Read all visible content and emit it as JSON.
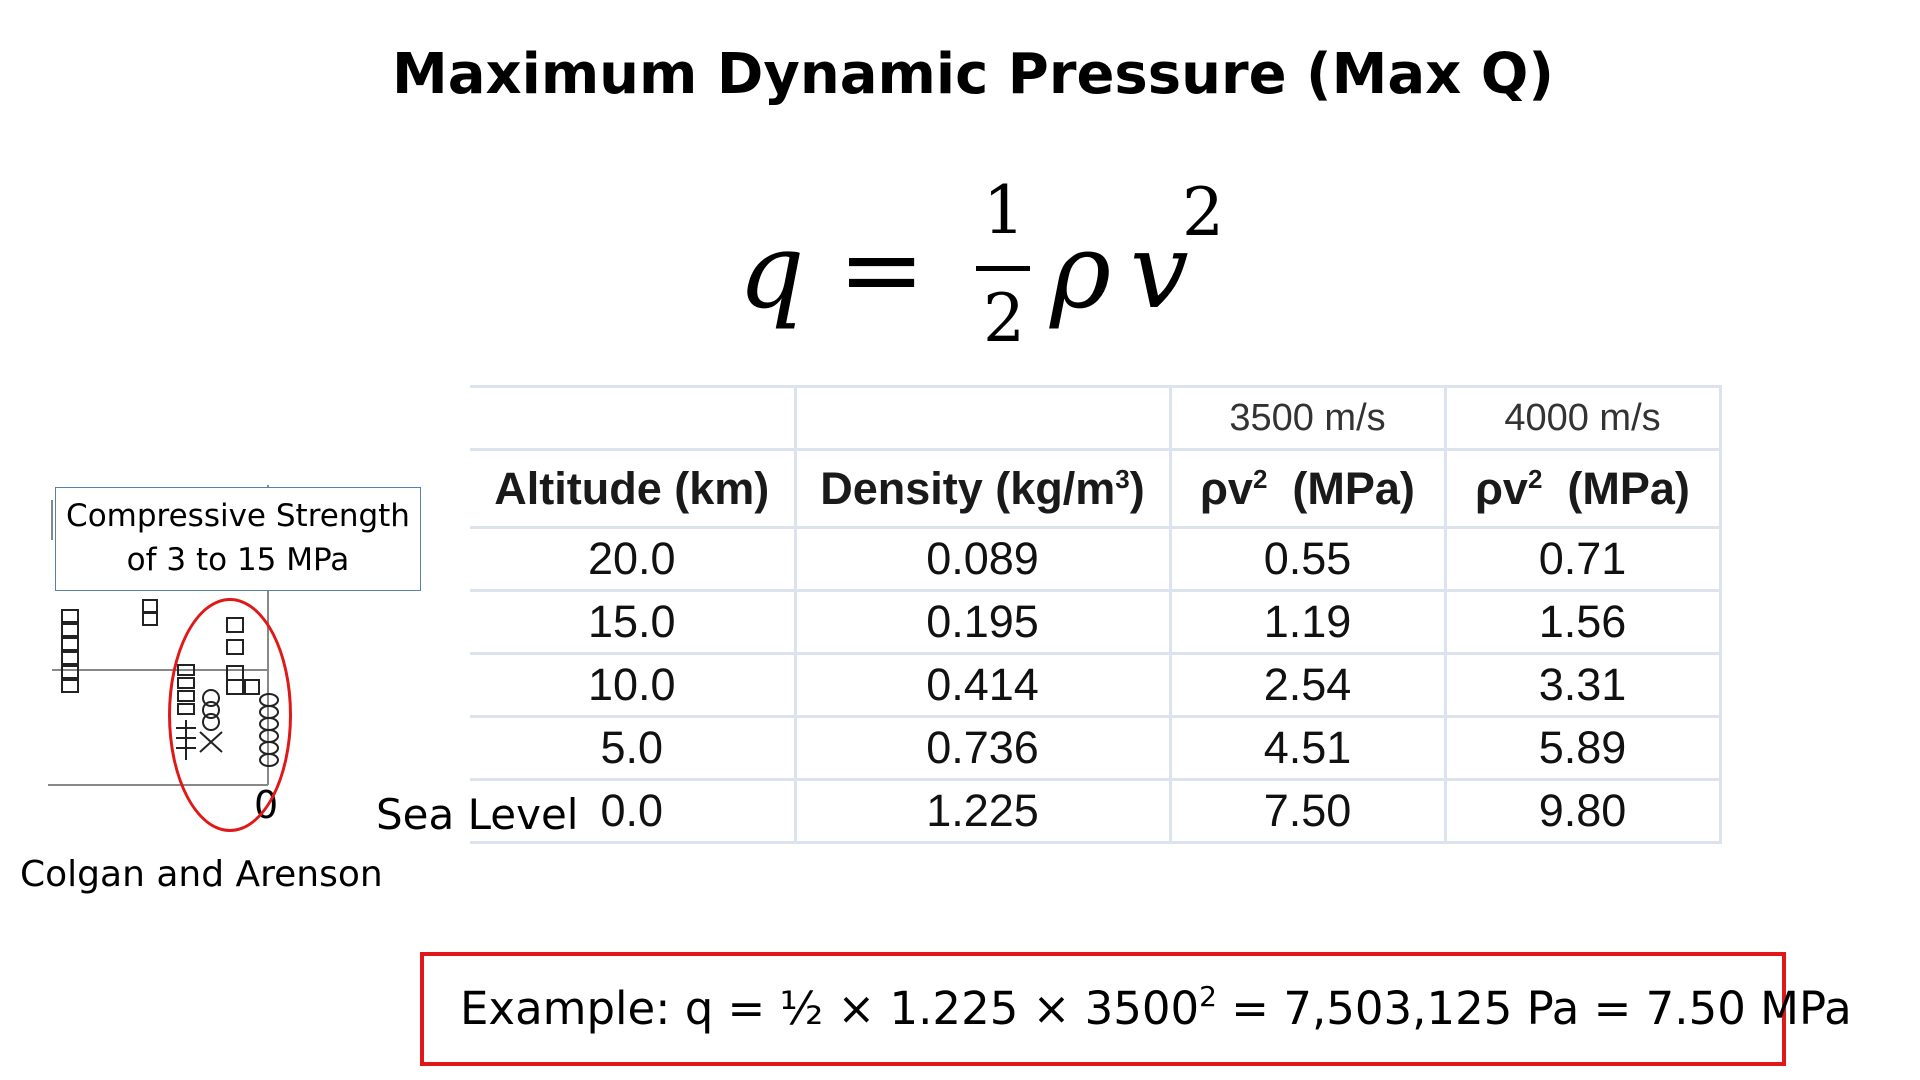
{
  "slide": {
    "title": "Maximum Dynamic Pressure (Max Q)",
    "formula": {
      "lhs": "q",
      "equals": "=",
      "numerator": "1",
      "denominator": "2",
      "rho": "ρ",
      "v": "v",
      "exponent": "2"
    }
  },
  "table": {
    "speed_labels": [
      "",
      "",
      "3500 m/s",
      "4000 m/s"
    ],
    "headers": {
      "altitude": "Altitude (km)",
      "density_prefix": "Density (kg/m",
      "density_exp": "3",
      "density_suffix": ")",
      "rho": "ρv",
      "rho_exp": "2",
      "rho_unit": "  (MPa)"
    },
    "rows": [
      [
        "20.0",
        "0.089",
        "0.55",
        "0.71"
      ],
      [
        "15.0",
        "0.195",
        "1.19",
        "1.56"
      ],
      [
        "10.0",
        "0.414",
        "2.54",
        "3.31"
      ],
      [
        "5.0",
        "0.736",
        "4.51",
        "5.89"
      ],
      [
        "0.0",
        "1.225",
        "7.50",
        "9.80"
      ]
    ]
  },
  "plot_inset": {
    "axis_label": "0",
    "callout_line1": "Compressive Strength",
    "callout_line2": "of 3 to 15 MPa",
    "credit": "Colgan and Arenson",
    "highlight_color": "#e01818"
  },
  "sea_level_label": "Sea Level",
  "example": {
    "prefix": "Example: q = ½ × 1.225 × 3500",
    "exp": "2",
    "suffix": " = 7,503,125 Pa = 7.50 MPa",
    "border_color": "#e01818"
  }
}
